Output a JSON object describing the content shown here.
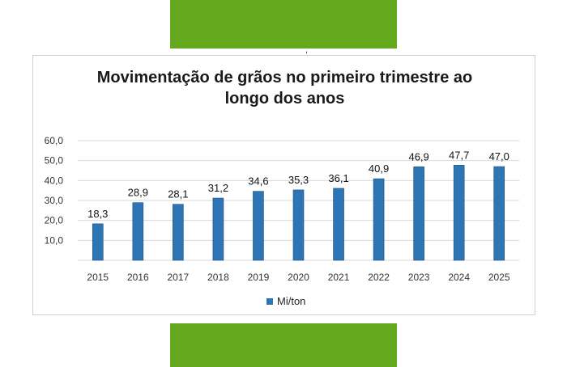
{
  "colors": {
    "accent_green": "#64a81e",
    "bar": "#2e75b6",
    "bar_edge": "#1f4e79"
  },
  "stray_mark": ",",
  "chart_data": {
    "type": "bar",
    "title_lines": [
      "Movimentação de grãos no primeiro trimestre ao",
      "longo dos anos"
    ],
    "categories": [
      "2015",
      "2016",
      "2017",
      "2018",
      "2019",
      "2020",
      "2021",
      "2022",
      "2023",
      "2024",
      "2025"
    ],
    "series": [
      {
        "name": "Mi/ton",
        "values": [
          18.3,
          28.9,
          28.1,
          31.2,
          34.6,
          35.3,
          36.1,
          40.9,
          46.9,
          47.7,
          47.0
        ],
        "labels": [
          "18,3",
          "28,9",
          "28,1",
          "31,2",
          "34,6",
          "35,3",
          "36,1",
          "40,9",
          "46,9",
          "47,7",
          "47,0"
        ]
      }
    ],
    "yticks": [
      "10,0",
      "20,0",
      "30,0",
      "40,0",
      "50,0",
      "60,0"
    ],
    "ytick_values": [
      10,
      20,
      30,
      40,
      50,
      60
    ],
    "ylim": [
      0,
      60
    ],
    "grid": true,
    "legend": "bottom-center",
    "xlabel": "",
    "ylabel": ""
  }
}
